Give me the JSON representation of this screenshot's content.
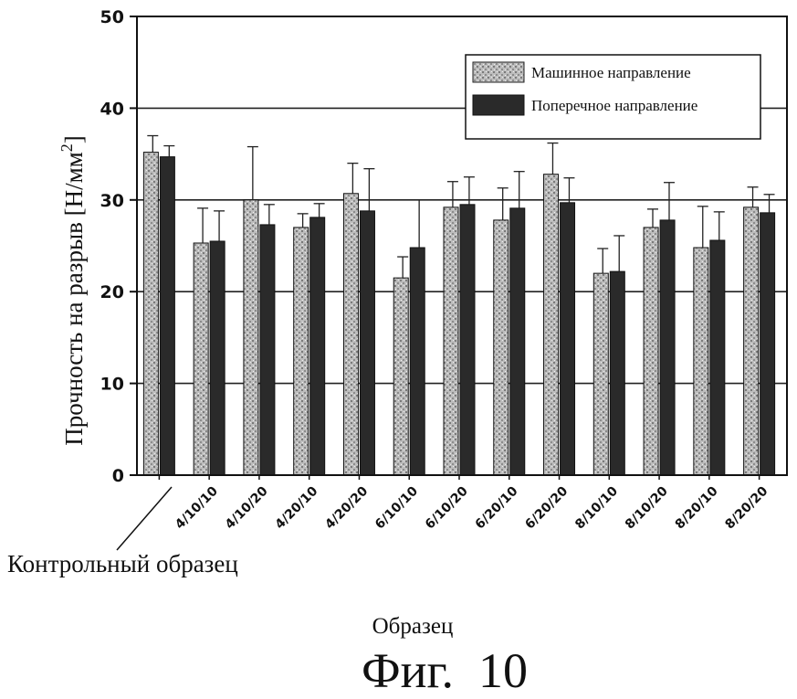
{
  "chart_data": {
    "type": "bar",
    "ylabel_main": "Прочность на разрыв [Н/мм",
    "ylabel_sup": "2",
    "ylabel_end": "]",
    "xlabel": "Образец",
    "figure_label": "Фиг.  10",
    "control_label": "Контрольный образец",
    "ylim": [
      0,
      50
    ],
    "yticks": [
      0,
      10,
      20,
      30,
      40,
      50
    ],
    "grid": true,
    "legend_position": "top-right",
    "categories": [
      "",
      "4/10/10",
      "4/10/20",
      "4/20/10",
      "4/20/20",
      "6/10/10",
      "6/10/20",
      "6/20/10",
      "6/20/20",
      "8/10/10",
      "8/10/20",
      "8/20/10",
      "8/20/20"
    ],
    "series": [
      {
        "name": "Машинное направление",
        "color": "#b5b5b5",
        "values": [
          35.2,
          25.3,
          30.0,
          27.0,
          30.7,
          21.5,
          29.2,
          27.8,
          32.8,
          22.0,
          27.0,
          24.8,
          29.2
        ],
        "errors": [
          1.8,
          3.8,
          5.8,
          1.5,
          3.3,
          2.3,
          2.8,
          3.5,
          3.4,
          2.7,
          2.0,
          4.5,
          2.2
        ]
      },
      {
        "name": "Поперечное направление",
        "color": "#2a2a2a",
        "values": [
          34.7,
          25.5,
          27.3,
          28.1,
          28.8,
          24.8,
          29.5,
          29.1,
          29.7,
          22.2,
          27.8,
          25.6,
          28.6
        ],
        "errors": [
          1.2,
          3.3,
          2.2,
          1.5,
          4.6,
          5.2,
          3.0,
          4.0,
          2.7,
          3.9,
          4.1,
          3.1,
          2.0
        ]
      }
    ]
  }
}
